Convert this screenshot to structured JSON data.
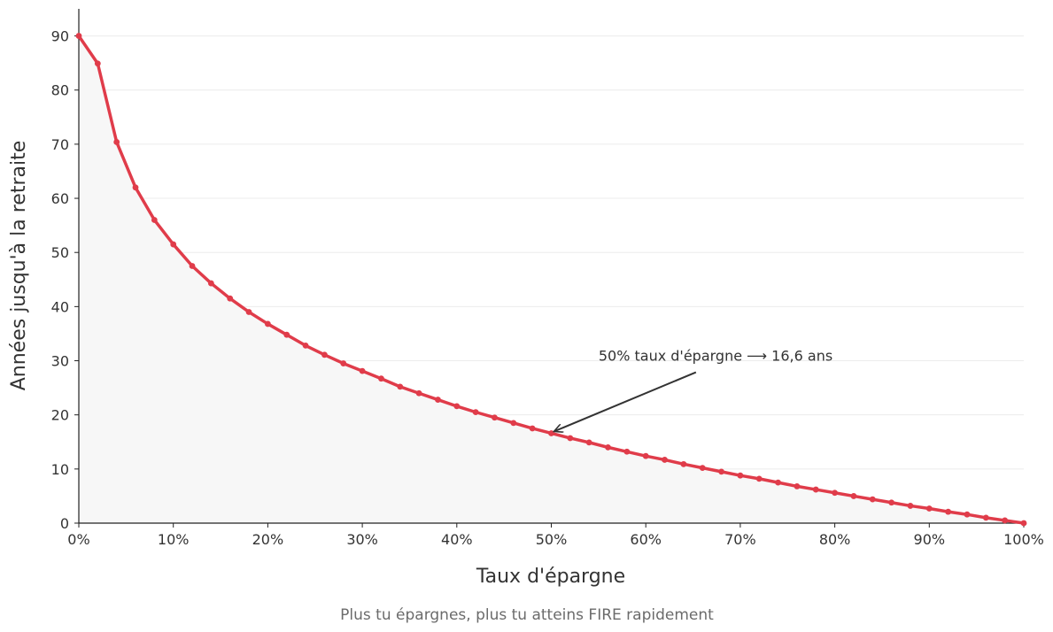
{
  "chart_data": {
    "type": "line",
    "title": "",
    "xlabel": "Taux d'épargne",
    "ylabel": "Années jusqu'à la retraite",
    "caption": "Plus tu épargnes, plus tu atteins FIRE rapidement",
    "xlim": [
      0,
      100
    ],
    "ylim": [
      0,
      95
    ],
    "x_ticks": [
      0,
      10,
      20,
      30,
      40,
      50,
      60,
      70,
      80,
      90,
      100
    ],
    "x_tick_labels": [
      "0%",
      "10%",
      "20%",
      "30%",
      "40%",
      "50%",
      "60%",
      "70%",
      "80%",
      "90%",
      "100%"
    ],
    "y_ticks": [
      0,
      10,
      20,
      30,
      40,
      50,
      60,
      70,
      80,
      90
    ],
    "y_tick_labels": [
      "0",
      "10",
      "20",
      "30",
      "40",
      "50",
      "60",
      "70",
      "80",
      "90"
    ],
    "grid": "horizontal",
    "area_fill": true,
    "colors": {
      "line": "#e03c4a",
      "area": "#f7f7f7",
      "grid": "#ececec",
      "axis": "#222222",
      "annotation": "#333333"
    },
    "series": [
      {
        "x": [
          0,
          2,
          4,
          6,
          8,
          10,
          12,
          14,
          16,
          18,
          20,
          22,
          24,
          26,
          28,
          30,
          32,
          34,
          36,
          38,
          40,
          42,
          44,
          46,
          48,
          50,
          52,
          54,
          56,
          58,
          60,
          62,
          64,
          66,
          68,
          70,
          72,
          74,
          76,
          78,
          80,
          82,
          84,
          86,
          88,
          90,
          92,
          94,
          96,
          98,
          100
        ],
        "y": [
          90,
          84.9,
          70.4,
          62.0,
          56.0,
          51.5,
          47.5,
          44.3,
          41.5,
          39.0,
          36.8,
          34.8,
          32.8,
          31.1,
          29.5,
          28.1,
          26.7,
          25.2,
          24.0,
          22.8,
          21.6,
          20.5,
          19.5,
          18.5,
          17.5,
          16.6,
          15.7,
          14.9,
          14.0,
          13.2,
          12.4,
          11.7,
          10.9,
          10.2,
          9.5,
          8.8,
          8.2,
          7.5,
          6.8,
          6.2,
          5.6,
          5.0,
          4.4,
          3.8,
          3.2,
          2.7,
          2.1,
          1.6,
          1.0,
          0.5,
          0
        ]
      }
    ],
    "annotation": {
      "text": "50% taux d'épargne ⟶ 16,6 ans",
      "point": [
        50,
        16.6
      ],
      "text_at": [
        55,
        30
      ]
    }
  }
}
